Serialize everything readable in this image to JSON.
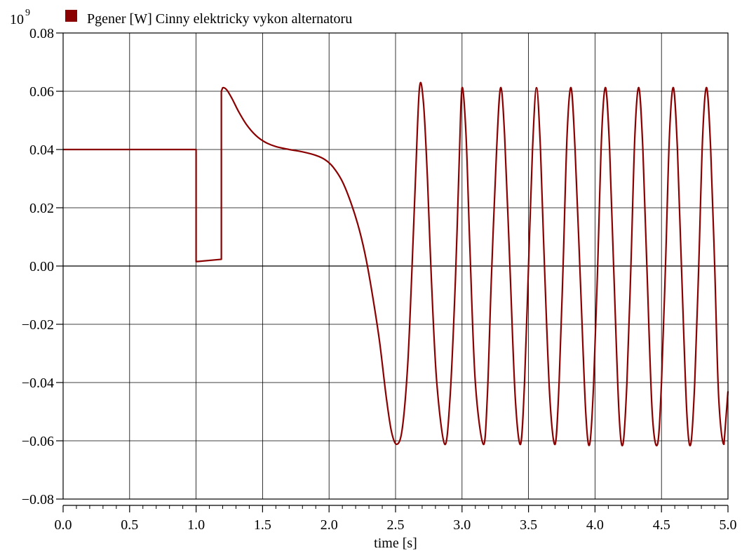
{
  "chart_data": {
    "type": "line",
    "title": "",
    "xlabel": "time [s]",
    "ylabel": "",
    "y_multiplier_label": "10",
    "y_multiplier_exponent": "9",
    "xlim": [
      0.0,
      5.0
    ],
    "ylim": [
      -0.08,
      0.08
    ],
    "x_ticks": [
      0.0,
      0.5,
      1.0,
      1.5,
      2.0,
      2.5,
      3.0,
      3.5,
      4.0,
      4.5,
      5.0
    ],
    "x_tick_labels": [
      "0.0",
      "0.5",
      "1.0",
      "1.5",
      "2.0",
      "2.5",
      "3.0",
      "3.5",
      "4.0",
      "4.5",
      "5.0"
    ],
    "y_ticks": [
      -0.08,
      -0.06,
      -0.04,
      -0.02,
      0.0,
      0.02,
      0.04,
      0.06,
      0.08
    ],
    "y_tick_labels": [
      "−0.08",
      "−0.06",
      "−0.04",
      "−0.02",
      "0.00",
      "0.02",
      "0.04",
      "0.06",
      "0.08"
    ],
    "grid": true,
    "legend_position": "top-left",
    "series": [
      {
        "name": "Pgener [W] Cinny elektricky vykon alternatoru",
        "color": "#8b0000",
        "points": [
          [
            0.0,
            0.04
          ],
          [
            1.0,
            0.04
          ],
          [
            1.0,
            0.0015
          ],
          [
            1.19,
            0.0023
          ],
          [
            1.19,
            0.06
          ],
          [
            1.2,
            0.0612
          ],
          [
            1.23,
            0.0605
          ],
          [
            1.27,
            0.0575
          ],
          [
            1.32,
            0.053
          ],
          [
            1.38,
            0.0485
          ],
          [
            1.45,
            0.0448
          ],
          [
            1.52,
            0.0425
          ],
          [
            1.6,
            0.041
          ],
          [
            1.7,
            0.04
          ],
          [
            1.8,
            0.0392
          ],
          [
            1.9,
            0.038
          ],
          [
            1.97,
            0.0365
          ],
          [
            2.03,
            0.034
          ],
          [
            2.1,
            0.029
          ],
          [
            2.17,
            0.021
          ],
          [
            2.23,
            0.012
          ],
          [
            2.28,
            0.002
          ],
          [
            2.33,
            -0.011
          ],
          [
            2.38,
            -0.026
          ],
          [
            2.43,
            -0.045
          ],
          [
            2.47,
            -0.057
          ],
          [
            2.51,
            -0.0612
          ],
          [
            2.55,
            -0.056
          ],
          [
            2.59,
            -0.035
          ],
          [
            2.62,
            -0.005
          ],
          [
            2.65,
            0.03
          ],
          [
            2.68,
            0.0612
          ],
          [
            2.71,
            0.056
          ],
          [
            2.74,
            0.03
          ],
          [
            2.77,
            -0.005
          ],
          [
            2.81,
            -0.04
          ],
          [
            2.87,
            -0.0612
          ],
          [
            2.91,
            -0.045
          ],
          [
            2.95,
            -0.005
          ],
          [
            2.98,
            0.038
          ],
          [
            3.0,
            0.0612
          ],
          [
            3.03,
            0.045
          ],
          [
            3.06,
            0.005
          ],
          [
            3.1,
            -0.04
          ],
          [
            3.16,
            -0.0612
          ],
          [
            3.19,
            -0.045
          ],
          [
            3.22,
            -0.005
          ],
          [
            3.26,
            0.04
          ],
          [
            3.29,
            0.0612
          ],
          [
            3.32,
            0.045
          ],
          [
            3.36,
            0.0
          ],
          [
            3.4,
            -0.045
          ],
          [
            3.44,
            -0.0612
          ],
          [
            3.47,
            -0.04
          ],
          [
            3.5,
            0.0
          ],
          [
            3.53,
            0.04
          ],
          [
            3.56,
            0.0612
          ],
          [
            3.59,
            0.04
          ],
          [
            3.62,
            0.0
          ],
          [
            3.66,
            -0.045
          ],
          [
            3.7,
            -0.0612
          ],
          [
            3.73,
            -0.04
          ],
          [
            3.76,
            0.0
          ],
          [
            3.79,
            0.045
          ],
          [
            3.82,
            0.0612
          ],
          [
            3.85,
            0.04
          ],
          [
            3.89,
            -0.005
          ],
          [
            3.93,
            -0.05
          ],
          [
            3.96,
            -0.0612
          ],
          [
            3.99,
            -0.04
          ],
          [
            4.02,
            0.0
          ],
          [
            4.05,
            0.045
          ],
          [
            4.08,
            0.0612
          ],
          [
            4.11,
            0.04
          ],
          [
            4.14,
            0.0
          ],
          [
            4.18,
            -0.05
          ],
          [
            4.21,
            -0.0612
          ],
          [
            4.24,
            -0.04
          ],
          [
            4.27,
            0.0
          ],
          [
            4.3,
            0.045
          ],
          [
            4.33,
            0.0612
          ],
          [
            4.36,
            0.04
          ],
          [
            4.39,
            0.0
          ],
          [
            4.43,
            -0.05
          ],
          [
            4.47,
            -0.0612
          ],
          [
            4.5,
            -0.04
          ],
          [
            4.53,
            0.0
          ],
          [
            4.56,
            0.045
          ],
          [
            4.59,
            0.0612
          ],
          [
            4.62,
            0.04
          ],
          [
            4.65,
            0.0
          ],
          [
            4.69,
            -0.05
          ],
          [
            4.72,
            -0.0612
          ],
          [
            4.75,
            -0.04
          ],
          [
            4.78,
            0.0
          ],
          [
            4.81,
            0.045
          ],
          [
            4.84,
            0.0612
          ],
          [
            4.87,
            0.04
          ],
          [
            4.9,
            0.0
          ],
          [
            4.93,
            -0.045
          ],
          [
            4.97,
            -0.0612
          ],
          [
            5.0,
            -0.043
          ]
        ]
      }
    ]
  }
}
